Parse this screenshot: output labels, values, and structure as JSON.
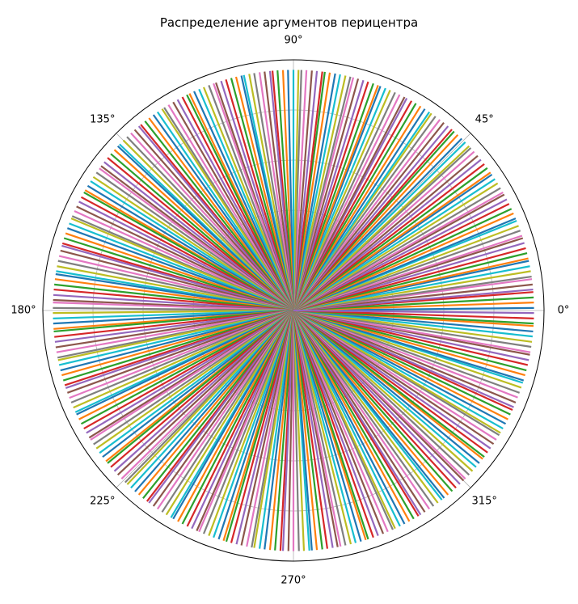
{
  "chart_data": {
    "type": "polar-line",
    "title": "Распределение аргументов перицентра",
    "theta_tick_labels": [
      "0°",
      "45°",
      "90°",
      "135°",
      "180°",
      "225°",
      "270°",
      "315°"
    ],
    "theta_ticks_deg": [
      0,
      45,
      90,
      135,
      180,
      225,
      270,
      315
    ],
    "r_range": [
      0,
      1
    ],
    "r_gridlines": [
      0.2,
      0.4,
      0.6,
      0.8
    ],
    "r_tick_labels_visible": false,
    "grid": true,
    "legend": "none",
    "series_color_cycle": [
      "#1f77b4",
      "#ff7f0e",
      "#2ca02c",
      "#d62728",
      "#9467bd",
      "#8c564b",
      "#e377c2",
      "#7f7f7f",
      "#bcbd22",
      "#17becf"
    ],
    "series_description": "each series is a radial segment from r=0 to r=1 at the given argument of pericenter (degrees)",
    "angles_deg": [
      0.6,
      1.9,
      3.1,
      4.4,
      5.0,
      6.2,
      7.5,
      8.1,
      9.4,
      10.6,
      11.9,
      12.5,
      13.8,
      15.0,
      16.3,
      17.5,
      18.1,
      19.4,
      20.6,
      21.9,
      22.5,
      23.8,
      25.0,
      26.3,
      27.5,
      28.8,
      29.4,
      30.6,
      31.9,
      33.1,
      34.4,
      35.0,
      36.3,
      37.5,
      38.8,
      40.0,
      41.3,
      42.5,
      43.1,
      44.4,
      45.6,
      46.9,
      48.1,
      48.8,
      50.0,
      51.3,
      52.5,
      53.8,
      55.0,
      55.6,
      56.9,
      58.1,
      59.4,
      60.6,
      61.9,
      62.5,
      63.8,
      65.0,
      66.3,
      67.5,
      68.8,
      69.4,
      70.6,
      71.9,
      73.1,
      74.4,
      75.6,
      76.3,
      77.5,
      78.8,
      80.0,
      81.3,
      82.5,
      83.1,
      84.4,
      85.6,
      86.9,
      88.1,
      88.8,
      90.0,
      91.3,
      92.5,
      93.8,
      95.0,
      95.6,
      96.9,
      98.1,
      99.4,
      100.6,
      101.9,
      102.5,
      103.8,
      105.0,
      106.3,
      107.5,
      108.8,
      109.4,
      110.6,
      111.9,
      113.1,
      114.4,
      115.6,
      116.3,
      117.5,
      118.8,
      120.0,
      121.3,
      122.5,
      123.1,
      124.4,
      125.6,
      126.9,
      128.1,
      129.4,
      130.0,
      131.3,
      132.5,
      133.8,
      135.0,
      136.3,
      136.9,
      138.1,
      139.4,
      140.6,
      141.9,
      143.1,
      143.8,
      145.0,
      146.3,
      147.5,
      148.8,
      150.0,
      150.6,
      151.9,
      153.1,
      154.4,
      155.6,
      156.9,
      157.5,
      158.8,
      160.0,
      161.3,
      162.5,
      163.8,
      164.4,
      165.6,
      166.9,
      168.1,
      169.4,
      170.6,
      171.3,
      172.5,
      173.8,
      175.0,
      176.3,
      177.5,
      178.1,
      179.4,
      180.6,
      181.9,
      183.1,
      184.4,
      185.0,
      186.3,
      187.5,
      188.8,
      190.0,
      191.3,
      191.9,
      193.1,
      194.4,
      195.6,
      196.9,
      198.1,
      198.8,
      200.0,
      201.3,
      202.5,
      203.8,
      205.0,
      205.6,
      206.9,
      208.1,
      209.4,
      210.6,
      211.9,
      212.5,
      213.8,
      215.0,
      216.3,
      217.5,
      218.8,
      219.4,
      220.6,
      221.9,
      223.1,
      224.4,
      225.6,
      226.3,
      227.5,
      228.8,
      230.0,
      231.3,
      232.5,
      233.1,
      234.4,
      235.6,
      236.9,
      238.1,
      239.4,
      240.0,
      241.3,
      242.5,
      243.8,
      245.0,
      246.3,
      246.9,
      248.1,
      249.4,
      250.6,
      251.9,
      253.1,
      253.8,
      255.0,
      256.3,
      257.5,
      258.8,
      260.0,
      260.6,
      261.9,
      263.1,
      264.4,
      265.6,
      266.9,
      267.5,
      268.8,
      270.0,
      271.3,
      272.5,
      273.8,
      274.4,
      275.6,
      276.9,
      278.1,
      279.4,
      280.6,
      281.3,
      282.5,
      283.8,
      285.0,
      286.3,
      287.5,
      288.1,
      289.4,
      290.6,
      291.9,
      293.1,
      294.4,
      295.0,
      296.3,
      297.5,
      298.8,
      300.0,
      301.3,
      301.9,
      303.1,
      304.4,
      305.6,
      306.9,
      308.1,
      308.8,
      310.0,
      311.3,
      312.5,
      313.8,
      315.0,
      315.6,
      316.9,
      318.1,
      319.4,
      320.6,
      321.9,
      322.5,
      323.8,
      325.0,
      326.3,
      327.5,
      328.8,
      329.4,
      330.6,
      331.9,
      333.1,
      334.4,
      335.6,
      336.3,
      337.5,
      338.8,
      340.0,
      341.3,
      342.5,
      343.1,
      344.4,
      345.6,
      346.9,
      348.1,
      349.4,
      350.0,
      351.3,
      352.5,
      353.8,
      355.0,
      356.3,
      356.9,
      358.1,
      359.4
    ]
  }
}
